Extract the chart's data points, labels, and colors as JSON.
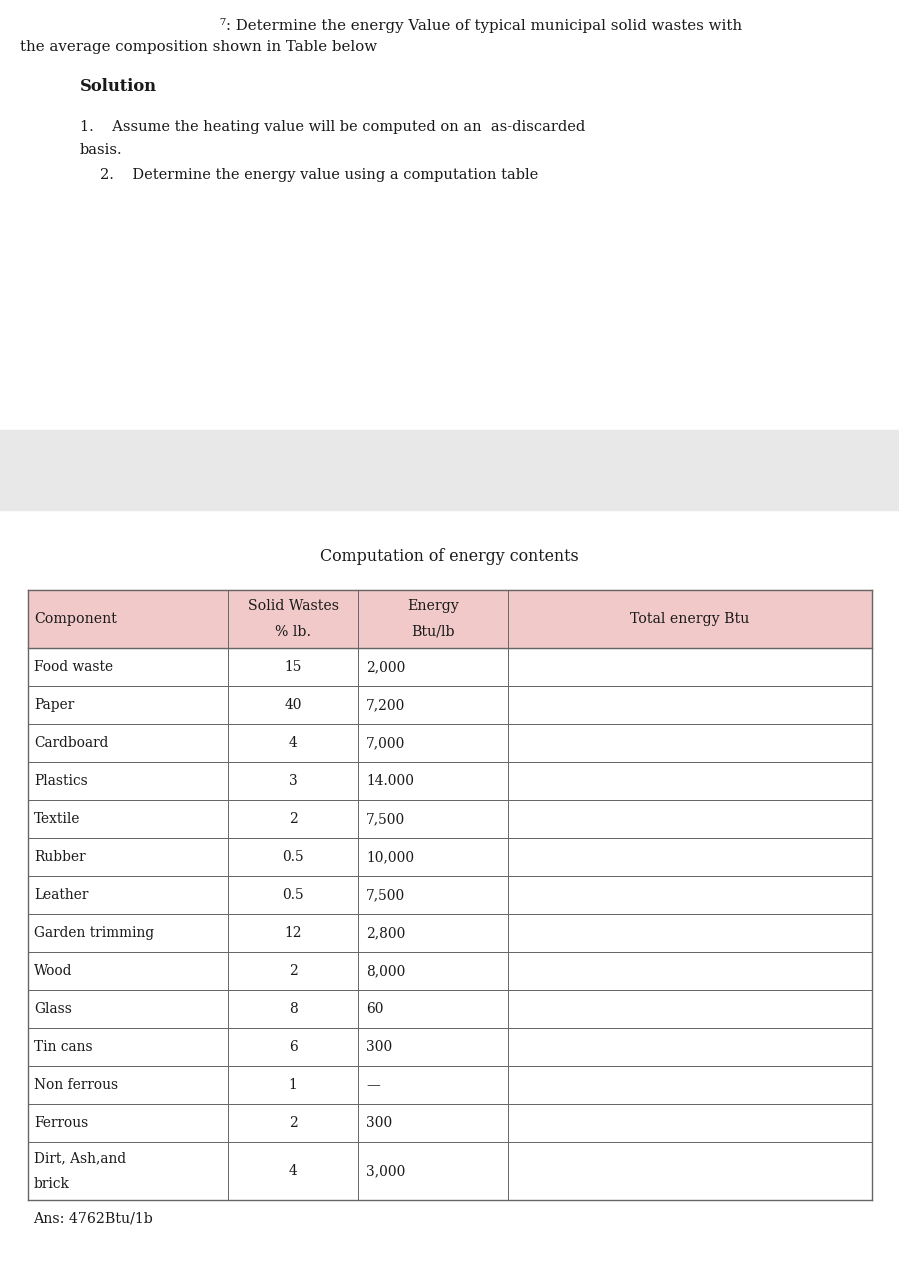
{
  "title_line1": "⁷: Determine the energy Value of typical municipal solid wastes with",
  "title_line2": "the average composition shown in Table below",
  "solution_label": "Solution",
  "point1a": "1.    Assume the heating value will be computed on an  as-discarded",
  "point1b": "basis.",
  "point2": "2.    Determine the energy value using a computation table",
  "table_title": "Computation of energy contents",
  "col_header_0": "Component",
  "col_header_1a": "Solid Wastes",
  "col_header_1b": "% lb.",
  "col_header_2a": "Energy",
  "col_header_2b": "Btu/lb",
  "col_header_3": "Total energy Btu",
  "rows": [
    [
      "Food waste",
      "15",
      "2,000",
      ""
    ],
    [
      "Paper",
      "40",
      "7,200",
      ""
    ],
    [
      "Cardboard",
      "4",
      "7,000",
      ""
    ],
    [
      "Plastics",
      "3",
      "14.000",
      ""
    ],
    [
      "Textile",
      "2",
      "7,500",
      ""
    ],
    [
      "Rubber",
      "0.5",
      "10,000",
      ""
    ],
    [
      "Leather",
      "0.5",
      "7,500",
      ""
    ],
    [
      "Garden trimming",
      "12",
      "2,800",
      ""
    ],
    [
      "Wood",
      "2",
      "8,000",
      ""
    ],
    [
      "Glass",
      "8",
      "60",
      ""
    ],
    [
      "Tin cans",
      "6",
      "300",
      ""
    ],
    [
      "Non ferrous",
      "1",
      "—",
      ""
    ],
    [
      "Ferrous",
      "2",
      "300",
      ""
    ],
    [
      "Dirt, Ash,and",
      "4",
      "3,000",
      ""
    ],
    [
      "brick",
      "",
      "",
      ""
    ]
  ],
  "answer": "Ans: 4762Btu/1b",
  "header_bg": "#f2c9c9",
  "gray_band_color": "#e8e8e8",
  "table_border": "#666666",
  "bg_color": "#ffffff",
  "text_color": "#1a1a1a",
  "font_size_title": 10.8,
  "font_size_body": 10.5,
  "font_size_table": 10.2
}
